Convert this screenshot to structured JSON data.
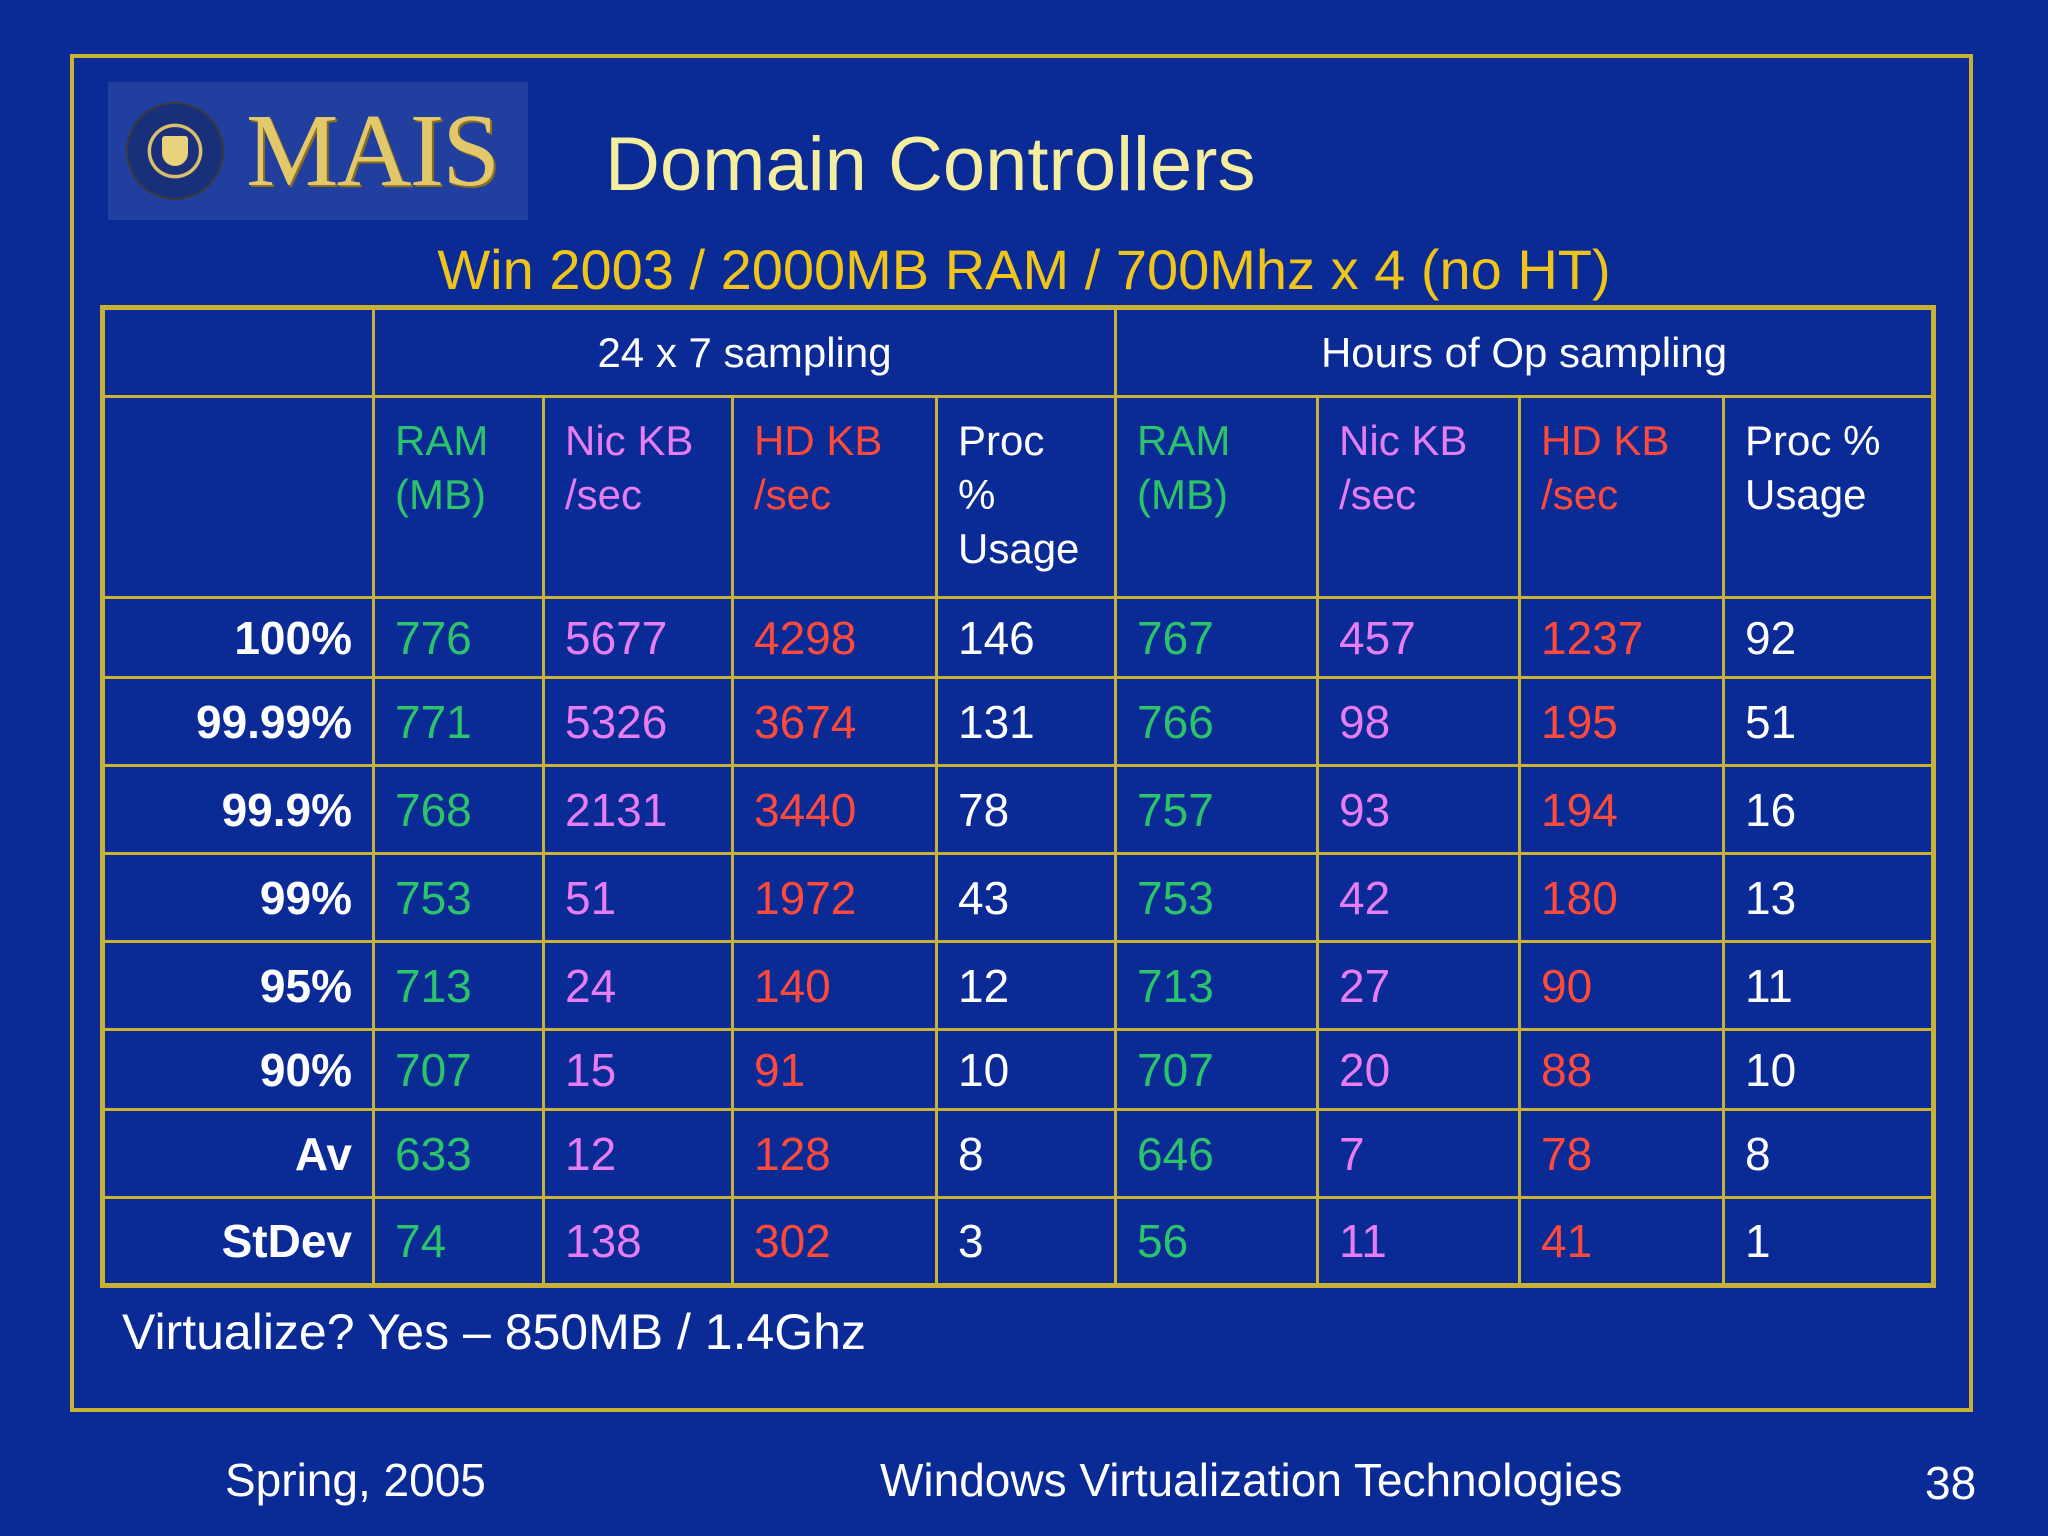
{
  "slide": {
    "logo_text": "MAIS",
    "title": "Domain Controllers",
    "subtitle": "Win 2003 / 2000MB RAM / 700Mhz x 4 (no HT)",
    "conclusion": "Virtualize? Yes – 850MB / 1.4Ghz"
  },
  "table": {
    "groups": [
      "24 x 7 sampling",
      "Hours of Op sampling"
    ],
    "columns": [
      {
        "line1": "RAM",
        "line2": "(MB)",
        "line3": ""
      },
      {
        "line1": "Nic KB",
        "line2": "/sec",
        "line3": ""
      },
      {
        "line1": "HD KB",
        "line2": "/sec",
        "line3": ""
      },
      {
        "line1": "Proc",
        "line2": "%",
        "line3": "Usage"
      },
      {
        "line1": "RAM",
        "line2": "(MB)",
        "line3": ""
      },
      {
        "line1": "Nic KB",
        "line2": "/sec",
        "line3": ""
      },
      {
        "line1": "HD KB",
        "line2": "/sec",
        "line3": ""
      },
      {
        "line1": "Proc %",
        "line2": "Usage",
        "line3": ""
      }
    ],
    "rows": [
      {
        "label": "100%",
        "values": [
          "776",
          "5677",
          "4298",
          "146",
          "767",
          "457",
          "1237",
          "92"
        ]
      },
      {
        "label": "99.99%",
        "values": [
          "771",
          "5326",
          "3674",
          "131",
          "766",
          "98",
          "195",
          "51"
        ]
      },
      {
        "label": "99.9%",
        "values": [
          "768",
          "2131",
          "3440",
          "78",
          "757",
          "93",
          "194",
          "16"
        ]
      },
      {
        "label": "99%",
        "values": [
          "753",
          "51",
          "1972",
          "43",
          "753",
          "42",
          "180",
          "13"
        ]
      },
      {
        "label": "95%",
        "values": [
          "713",
          "24",
          "140",
          "12",
          "713",
          "27",
          "90",
          "11"
        ]
      },
      {
        "label": "90%",
        "values": [
          "707",
          "15",
          "91",
          "10",
          "707",
          "20",
          "88",
          "10"
        ]
      },
      {
        "label": "Av",
        "values": [
          "633",
          "12",
          "128",
          "8",
          "646",
          "7",
          "78",
          "8"
        ]
      },
      {
        "label": "StDev",
        "values": [
          "74",
          "138",
          "302",
          "3",
          "56",
          "11",
          "41",
          "1"
        ]
      }
    ]
  },
  "footer": {
    "left": "Spring, 2005",
    "center": "Windows Virtualization Technologies",
    "page_number": "38"
  },
  "colors": {
    "background": "#0a2a96",
    "border": "#c9b233",
    "title": "#f4ee9e",
    "subtitle": "#f0c419",
    "ram": "#2cc46a",
    "nic": "#e87cf2",
    "hd": "#ff4a3a",
    "proc": "#ffffff"
  }
}
